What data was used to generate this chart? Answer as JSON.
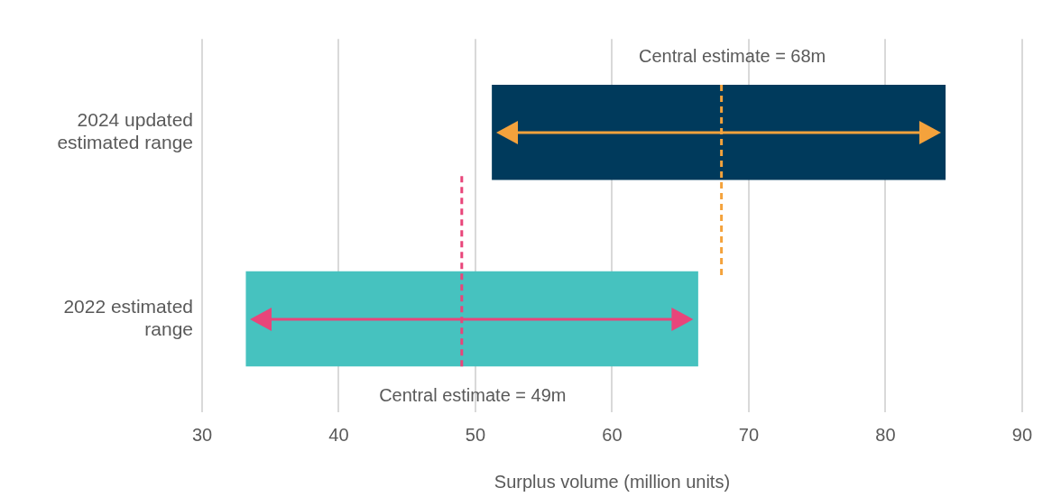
{
  "chart_data": {
    "type": "bar",
    "orientation": "horizontal",
    "categories": [
      "2024 updated estimated range",
      "2022 estimated range"
    ],
    "base": [
      51.2,
      33.2
    ],
    "values": [
      33.2,
      33.1
    ],
    "colors": [
      "#003a5c",
      "#46c2bf"
    ],
    "xlim": [
      30,
      90
    ],
    "xticks": [
      30,
      40,
      50,
      60,
      70,
      80,
      90
    ],
    "xlabel": "Surplus volume (million units)",
    "grid": "x",
    "legend": false,
    "ref_lines": [
      {
        "axis": "x",
        "value": 68,
        "label": "Central estimate = 68m",
        "color": "#f4a23c",
        "line_style": "dashed"
      },
      {
        "axis": "x",
        "value": 49,
        "label": "Central estimate = 49m",
        "color": "#e8457a",
        "line_style": "dashed"
      }
    ]
  }
}
